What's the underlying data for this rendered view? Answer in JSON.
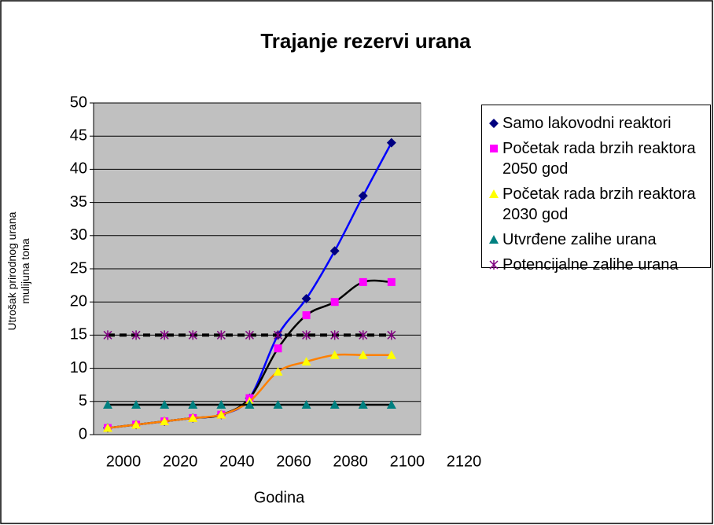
{
  "chart_data": {
    "type": "scatter",
    "title": "Trajanje rezervi urana",
    "xlabel": "Godina",
    "ylabel": "Utrošak prirodnog  urana mulijuna tona",
    "xlim": [
      2000,
      2120
    ],
    "xticks": [
      2000,
      2020,
      2040,
      2060,
      2080,
      2100,
      2120
    ],
    "ylim": [
      0,
      50
    ],
    "yticks": [
      0,
      5,
      10,
      15,
      20,
      25,
      30,
      35,
      40,
      45,
      50
    ],
    "grid": true,
    "x": [
      2000,
      2010,
      2020,
      2030,
      2040,
      2050,
      2060,
      2070,
      2080,
      2090,
      2100
    ],
    "series": [
      {
        "name": "Samo lakovodni reaktori",
        "color": "#000080",
        "line_color": "#0000ff",
        "marker": "diamond",
        "values": [
          1,
          1.5,
          2,
          2.5,
          3,
          5.5,
          15,
          20.5,
          27.7,
          36,
          44
        ]
      },
      {
        "name": "Početak rada brzih reaktora 2050 god",
        "color": "#ff00ff",
        "line_color": "#000000",
        "marker": "square",
        "values": [
          1,
          1.5,
          2,
          2.5,
          3,
          5.5,
          13,
          18,
          20,
          23,
          23
        ]
      },
      {
        "name": "Početak rada brzih reaktora 2030 god",
        "color": "#ffff00",
        "line_color": "#ff8000",
        "marker": "triangle",
        "values": [
          1,
          1.5,
          2,
          2.5,
          3,
          5,
          9.5,
          11,
          12,
          12,
          12
        ]
      },
      {
        "name": "Utvrđene zalihe urana",
        "color": "#008080",
        "line_color": "#000000",
        "marker": "triangle",
        "values": [
          4.5,
          4.5,
          4.5,
          4.5,
          4.5,
          4.5,
          4.5,
          4.5,
          4.5,
          4.5,
          4.5
        ]
      },
      {
        "name": "Potencijalne zalihe urana",
        "color": "#800080",
        "line_color": "#000000",
        "marker": "star",
        "dashed": true,
        "values": [
          15,
          15,
          15,
          15,
          15,
          15,
          15,
          15,
          15,
          15,
          15
        ]
      }
    ]
  }
}
